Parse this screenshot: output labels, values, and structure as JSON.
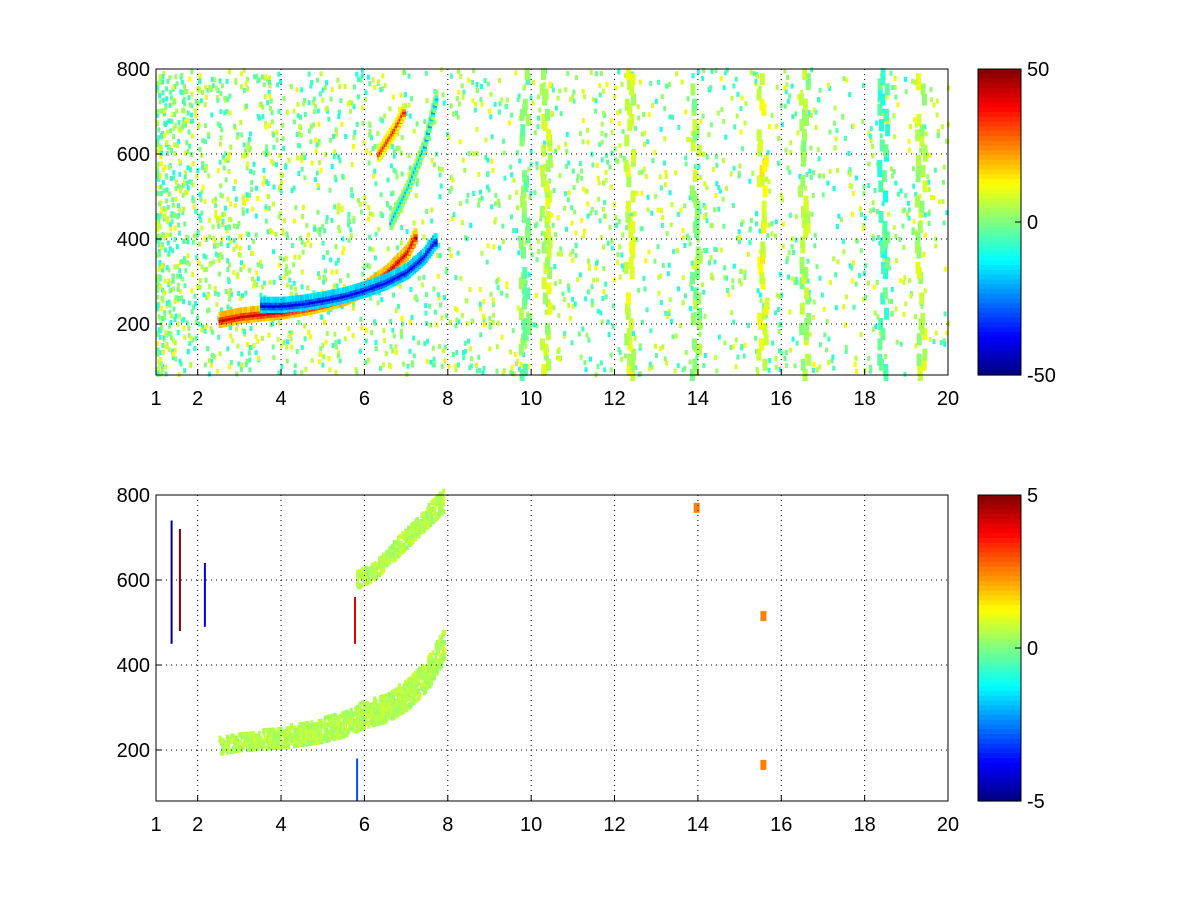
{
  "chart_data": [
    {
      "type": "heatmap",
      "title": "",
      "xlabel": "",
      "ylabel": "",
      "xlim": [
        1,
        20
      ],
      "ylim": [
        80,
        800
      ],
      "grid": true,
      "grid_style": "dotted",
      "x_ticks": [
        1,
        2,
        4,
        6,
        8,
        10,
        12,
        14,
        16,
        18,
        20
      ],
      "y_ticks": [
        200,
        400,
        600,
        800
      ],
      "x_tick_labels": [
        "1",
        "2",
        "4",
        "6",
        "8",
        "10",
        "12",
        "14",
        "16",
        "18",
        "20"
      ],
      "y_tick_labels": [
        "200",
        "400",
        "600",
        "800"
      ],
      "colorbar": {
        "colormap": "jet",
        "min": -50,
        "max": 50,
        "tick_labels": [
          "50",
          "0",
          "-50"
        ],
        "ticks": [
          50,
          0,
          -50
        ]
      },
      "features": {
        "positive_branch": {
          "description_points_x": [
            2.5,
            3,
            3.5,
            4,
            4.5,
            5,
            5.5,
            6,
            6.5,
            7,
            7.2
          ],
          "y": [
            210,
            220,
            225,
            230,
            238,
            248,
            262,
            285,
            320,
            370,
            410
          ],
          "value": 42
        },
        "negative_branch": {
          "x": [
            3.5,
            4,
            4.5,
            5,
            5.5,
            6,
            6.5,
            7,
            7.4,
            7.7
          ],
          "y": [
            245,
            245,
            250,
            258,
            268,
            282,
            300,
            325,
            360,
            400
          ],
          "value": -40
        },
        "upper_positive_branch": {
          "x": [
            6.3,
            6.5,
            6.7,
            6.9
          ],
          "y": [
            600,
            630,
            660,
            700
          ],
          "value": 35
        },
        "upper_negative_branch": {
          "x": [
            6.6,
            7,
            7.4,
            7.7
          ],
          "y": [
            440,
            520,
            620,
            740
          ],
          "value": -20
        }
      }
    },
    {
      "type": "heatmap",
      "title": "",
      "xlabel": "",
      "ylabel": "",
      "xlim": [
        1,
        20
      ],
      "ylim": [
        80,
        800
      ],
      "grid": true,
      "grid_style": "dotted",
      "x_ticks": [
        1,
        2,
        4,
        6,
        8,
        10,
        12,
        14,
        16,
        18,
        20
      ],
      "y_ticks": [
        200,
        400,
        600,
        800
      ],
      "x_tick_labels": [
        "1",
        "2",
        "4",
        "6",
        "8",
        "10",
        "12",
        "14",
        "16",
        "18",
        "20"
      ],
      "y_tick_labels": [
        "200",
        "400",
        "600",
        "800"
      ],
      "colorbar": {
        "colormap": "jet",
        "min": -5,
        "max": 5,
        "tick_labels": [
          "5",
          "0",
          "-5"
        ],
        "ticks": [
          5,
          0,
          -5
        ]
      },
      "features": {
        "lower_branch": {
          "x": [
            2.5,
            3,
            3.5,
            4,
            4.5,
            5,
            5.5,
            6,
            6.5,
            7,
            7.5,
            7.9
          ],
          "y": [
            210,
            220,
            225,
            230,
            238,
            248,
            262,
            285,
            300,
            330,
            380,
            450
          ],
          "value": 0.5
        },
        "upper_branch": {
          "x": [
            5.8,
            6.2,
            6.6,
            7,
            7.5,
            7.9
          ],
          "y": [
            600,
            620,
            660,
            700,
            750,
            790
          ],
          "value": 0.5
        },
        "spikes": [
          {
            "x": 1.35,
            "y0": 450,
            "y1": 740,
            "value": -5
          },
          {
            "x": 1.55,
            "y0": 480,
            "y1": 720,
            "value": 5
          },
          {
            "x": 2.15,
            "y0": 490,
            "y1": 640,
            "value": -4
          },
          {
            "x": 5.75,
            "y0": 450,
            "y1": 560,
            "value": 4
          },
          {
            "x": 5.8,
            "y0": 80,
            "y1": 180,
            "value": -3
          }
        ],
        "isolated_blocks": [
          {
            "x": 15.5,
            "y": 515,
            "value": 2.5
          },
          {
            "x": 15.5,
            "y": 165,
            "value": 2.5
          },
          {
            "x": 13.9,
            "y": 770,
            "value": 2.5
          }
        ]
      }
    }
  ]
}
